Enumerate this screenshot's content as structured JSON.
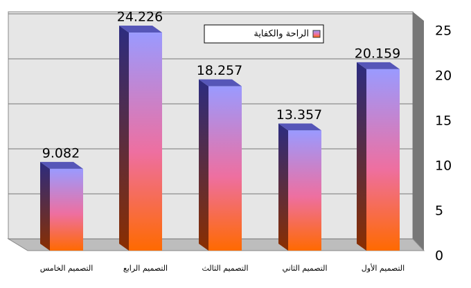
{
  "chart_data": {
    "type": "bar",
    "categories": [
      "التصميم الخامس",
      "التصميم الرابع",
      "التصميم الثالث",
      "التصميم الثاني",
      "التصميم الأول"
    ],
    "series": [
      {
        "name": "الراحة والكفاية",
        "color": "#9999ff",
        "values": [
          9.082,
          24.226,
          18.257,
          13.357,
          20.159
        ]
      }
    ],
    "ylim": [
      0,
      25
    ],
    "yticks": [
      0,
      5,
      10,
      15,
      20,
      25
    ],
    "grid": true,
    "legend": "top"
  }
}
